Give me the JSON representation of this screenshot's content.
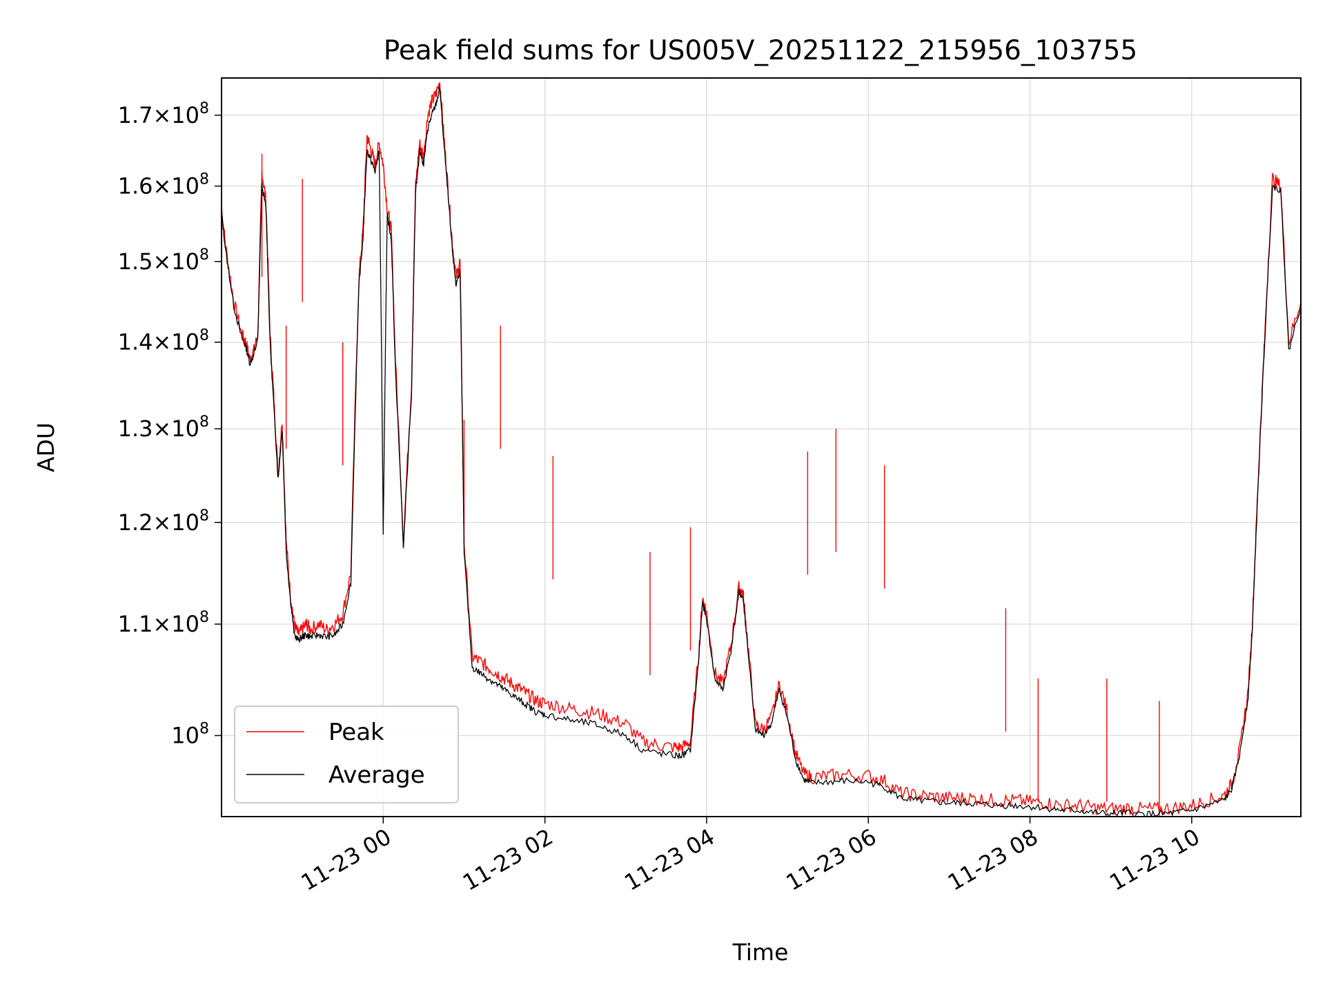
{
  "chart_data": {
    "type": "line",
    "title": "Peak field sums for US005V_20251122_215956_103755",
    "xlabel": "Time",
    "ylabel": "ADU",
    "yscale": "log",
    "ylim": [
      93300000,
      175500000
    ],
    "xlim_hours": [
      -2.0,
      11.35
    ],
    "grid": true,
    "legend_position": "lower-left",
    "x_ticks": [
      {
        "hour": 0,
        "label": "11-23 00"
      },
      {
        "hour": 2,
        "label": "11-23 02"
      },
      {
        "hour": 4,
        "label": "11-23 04"
      },
      {
        "hour": 6,
        "label": "11-23 06"
      },
      {
        "hour": 8,
        "label": "11-23 08"
      },
      {
        "hour": 10,
        "label": "11-23 10"
      }
    ],
    "y_ticks": [
      {
        "value": 100000000,
        "mantissa": "",
        "exponent": "8"
      },
      {
        "value": 110000000,
        "mantissa": "1.1",
        "exponent": "8"
      },
      {
        "value": 120000000,
        "mantissa": "1.2",
        "exponent": "8"
      },
      {
        "value": 130000000,
        "mantissa": "1.3",
        "exponent": "8"
      },
      {
        "value": 140000000,
        "mantissa": "1.4",
        "exponent": "8"
      },
      {
        "value": 150000000,
        "mantissa": "1.5",
        "exponent": "8"
      },
      {
        "value": 160000000,
        "mantissa": "1.6",
        "exponent": "8"
      },
      {
        "value": 170000000,
        "mantissa": "1.7",
        "exponent": "8"
      }
    ],
    "series": [
      {
        "name": "Peak",
        "color": "#ff0000",
        "x": [
          -2.0,
          -1.95,
          -1.85,
          -1.75,
          -1.7,
          -1.65,
          -1.6,
          -1.55,
          -1.5,
          -1.45,
          -1.4,
          -1.35,
          -1.3,
          -1.25,
          -1.2,
          -1.15,
          -1.1,
          -1.05,
          -1.0,
          -0.95,
          -0.9,
          -0.8,
          -0.7,
          -0.6,
          -0.5,
          -0.4,
          -0.3,
          -0.25,
          -0.2,
          -0.15,
          -0.1,
          -0.05,
          0.0,
          0.05,
          0.1,
          0.15,
          0.25,
          0.35,
          0.4,
          0.45,
          0.5,
          0.55,
          0.6,
          0.65,
          0.7,
          0.75,
          0.8,
          0.85,
          0.9,
          0.95,
          1.0,
          1.1,
          1.2,
          1.3,
          1.4,
          1.5,
          1.6,
          1.7,
          1.8,
          1.9,
          2.0,
          2.2,
          2.4,
          2.6,
          2.8,
          3.0,
          3.2,
          3.4,
          3.6,
          3.7,
          3.8,
          3.9,
          3.95,
          4.0,
          4.1,
          4.2,
          4.3,
          4.4,
          4.45,
          4.5,
          4.6,
          4.7,
          4.8,
          4.9,
          5.0,
          5.1,
          5.2,
          5.3,
          5.5,
          5.7,
          6.0,
          6.2,
          6.4,
          6.6,
          6.8,
          7.0,
          7.2,
          7.4,
          7.6,
          7.8,
          8.0,
          8.2,
          8.4,
          8.6,
          8.8,
          9.0,
          9.2,
          9.4,
          9.6,
          9.8,
          10.0,
          10.2,
          10.4,
          10.5,
          10.6,
          10.7,
          10.75,
          10.8,
          10.85,
          10.9,
          11.0,
          11.1,
          11.2,
          11.35
        ],
        "values": [
          157000000,
          152000000,
          145000000,
          141000000,
          140000000,
          138000000,
          139000000,
          141000000,
          162000000,
          158000000,
          141000000,
          133000000,
          125000000,
          131000000,
          118000000,
          113000000,
          110000000,
          109000000,
          109500000,
          110000000,
          109500000,
          110000000,
          109500000,
          110000000,
          111000000,
          115000000,
          148000000,
          154000000,
          167000000,
          165000000,
          163000000,
          166000000,
          163000000,
          157000000,
          154000000,
          138000000,
          118000000,
          135000000,
          160000000,
          166000000,
          164000000,
          170000000,
          172000000,
          173000000,
          175000000,
          167000000,
          160000000,
          153000000,
          148000000,
          150000000,
          118000000,
          107000000,
          106500000,
          106000000,
          105500000,
          105000000,
          104500000,
          104000000,
          103500000,
          103000000,
          102800000,
          102500000,
          102200000,
          102000000,
          101500000,
          101000000,
          99500000,
          99200000,
          99000000,
          99000000,
          99500000,
          107000000,
          112500000,
          111000000,
          105500000,
          104500000,
          108000000,
          113500000,
          113000000,
          109000000,
          101000000,
          100500000,
          101500000,
          104500000,
          102000000,
          98500000,
          96800000,
          96500000,
          96600000,
          96700000,
          96600000,
          96200000,
          95200000,
          95000000,
          94900000,
          94800000,
          94800000,
          94700000,
          94600000,
          94600000,
          94500000,
          94400000,
          94200000,
          94200000,
          94000000,
          93900000,
          94000000,
          93900000,
          93900000,
          94000000,
          94200000,
          94600000,
          95000000,
          96000000,
          99000000,
          104000000,
          110000000,
          120000000,
          130000000,
          140000000,
          161000000,
          160000000,
          140000000,
          145000000
        ],
        "spikes": [
          {
            "x": -1.5,
            "value": 164500000
          },
          {
            "x": -1.2,
            "value": 142000000
          },
          {
            "x": -0.5,
            "value": 140000000
          },
          {
            "x": -1.0,
            "value": 161000000
          },
          {
            "x": 1.0,
            "value": 131000000
          },
          {
            "x": 1.45,
            "value": 142000000
          },
          {
            "x": 2.1,
            "value": 127000000
          },
          {
            "x": 3.3,
            "value": 117000000
          },
          {
            "x": 3.8,
            "value": 119500000
          },
          {
            "x": 5.25,
            "value": 127500000
          },
          {
            "x": 5.6,
            "value": 130000000
          },
          {
            "x": 6.2,
            "value": 126000000
          },
          {
            "x": 7.7,
            "value": 111500000
          },
          {
            "x": 8.1,
            "value": 105000000
          },
          {
            "x": 8.95,
            "value": 105000000
          },
          {
            "x": 9.6,
            "value": 103000000
          }
        ]
      },
      {
        "name": "Average",
        "color": "#000000",
        "x": [
          -2.0,
          -1.95,
          -1.85,
          -1.75,
          -1.7,
          -1.65,
          -1.6,
          -1.55,
          -1.5,
          -1.45,
          -1.4,
          -1.35,
          -1.3,
          -1.25,
          -1.2,
          -1.15,
          -1.1,
          -1.05,
          -1.0,
          -0.95,
          -0.9,
          -0.8,
          -0.7,
          -0.6,
          -0.5,
          -0.4,
          -0.3,
          -0.25,
          -0.2,
          -0.15,
          -0.1,
          -0.05,
          0.0,
          0.05,
          0.1,
          0.15,
          0.25,
          0.35,
          0.4,
          0.45,
          0.5,
          0.55,
          0.6,
          0.65,
          0.7,
          0.75,
          0.8,
          0.85,
          0.9,
          0.95,
          1.0,
          1.1,
          1.2,
          1.3,
          1.4,
          1.5,
          1.6,
          1.7,
          1.8,
          1.9,
          2.0,
          2.2,
          2.4,
          2.6,
          2.8,
          3.0,
          3.2,
          3.4,
          3.6,
          3.7,
          3.8,
          3.9,
          3.95,
          4.0,
          4.1,
          4.2,
          4.3,
          4.4,
          4.45,
          4.5,
          4.6,
          4.7,
          4.8,
          4.9,
          5.0,
          5.1,
          5.2,
          5.3,
          5.5,
          5.7,
          6.0,
          6.2,
          6.4,
          6.6,
          6.8,
          7.0,
          7.2,
          7.4,
          7.6,
          7.8,
          8.0,
          8.2,
          8.4,
          8.6,
          8.8,
          9.0,
          9.2,
          9.4,
          9.6,
          9.8,
          10.0,
          10.2,
          10.4,
          10.5,
          10.6,
          10.7,
          10.75,
          10.8,
          10.85,
          10.9,
          11.0,
          11.1,
          11.2,
          11.35
        ],
        "values": [
          156500000,
          151500000,
          144500000,
          140500000,
          139500000,
          137500000,
          138500000,
          140500000,
          160000000,
          157000000,
          140000000,
          132000000,
          124500000,
          130000000,
          117000000,
          112500000,
          109000000,
          108500000,
          108800000,
          109000000,
          108800000,
          109000000,
          108800000,
          109000000,
          110000000,
          114000000,
          147000000,
          153000000,
          165000000,
          163500000,
          162000000,
          165000000,
          119000000,
          156000000,
          153000000,
          137000000,
          117500000,
          134000000,
          159000000,
          165000000,
          163000000,
          168000000,
          170000000,
          171500000,
          174000000,
          166000000,
          159000000,
          152000000,
          147000000,
          149000000,
          117000000,
          106000000,
          105500000,
          105000000,
          104500000,
          104000000,
          103500000,
          103000000,
          102500000,
          102000000,
          101800000,
          101500000,
          101200000,
          101000000,
          100500000,
          100000000,
          98800000,
          98500000,
          98300000,
          98300000,
          98800000,
          106500000,
          112000000,
          110500000,
          105000000,
          104000000,
          107500000,
          113000000,
          112500000,
          108500000,
          100500000,
          100000000,
          101000000,
          104000000,
          101500000,
          98000000,
          96300000,
          96000000,
          96100000,
          96200000,
          96100000,
          95700000,
          94800000,
          94600000,
          94500000,
          94400000,
          94400000,
          94300000,
          94200000,
          94200000,
          94100000,
          94000000,
          93800000,
          93800000,
          93600000,
          93500000,
          93600000,
          93500000,
          93500000,
          93600000,
          93800000,
          94200000,
          94600000,
          95600000,
          98600000,
          103500000,
          109500000,
          119500000,
          129500000,
          139500000,
          160000000,
          159500000,
          139000000,
          144500000
        ]
      }
    ]
  }
}
